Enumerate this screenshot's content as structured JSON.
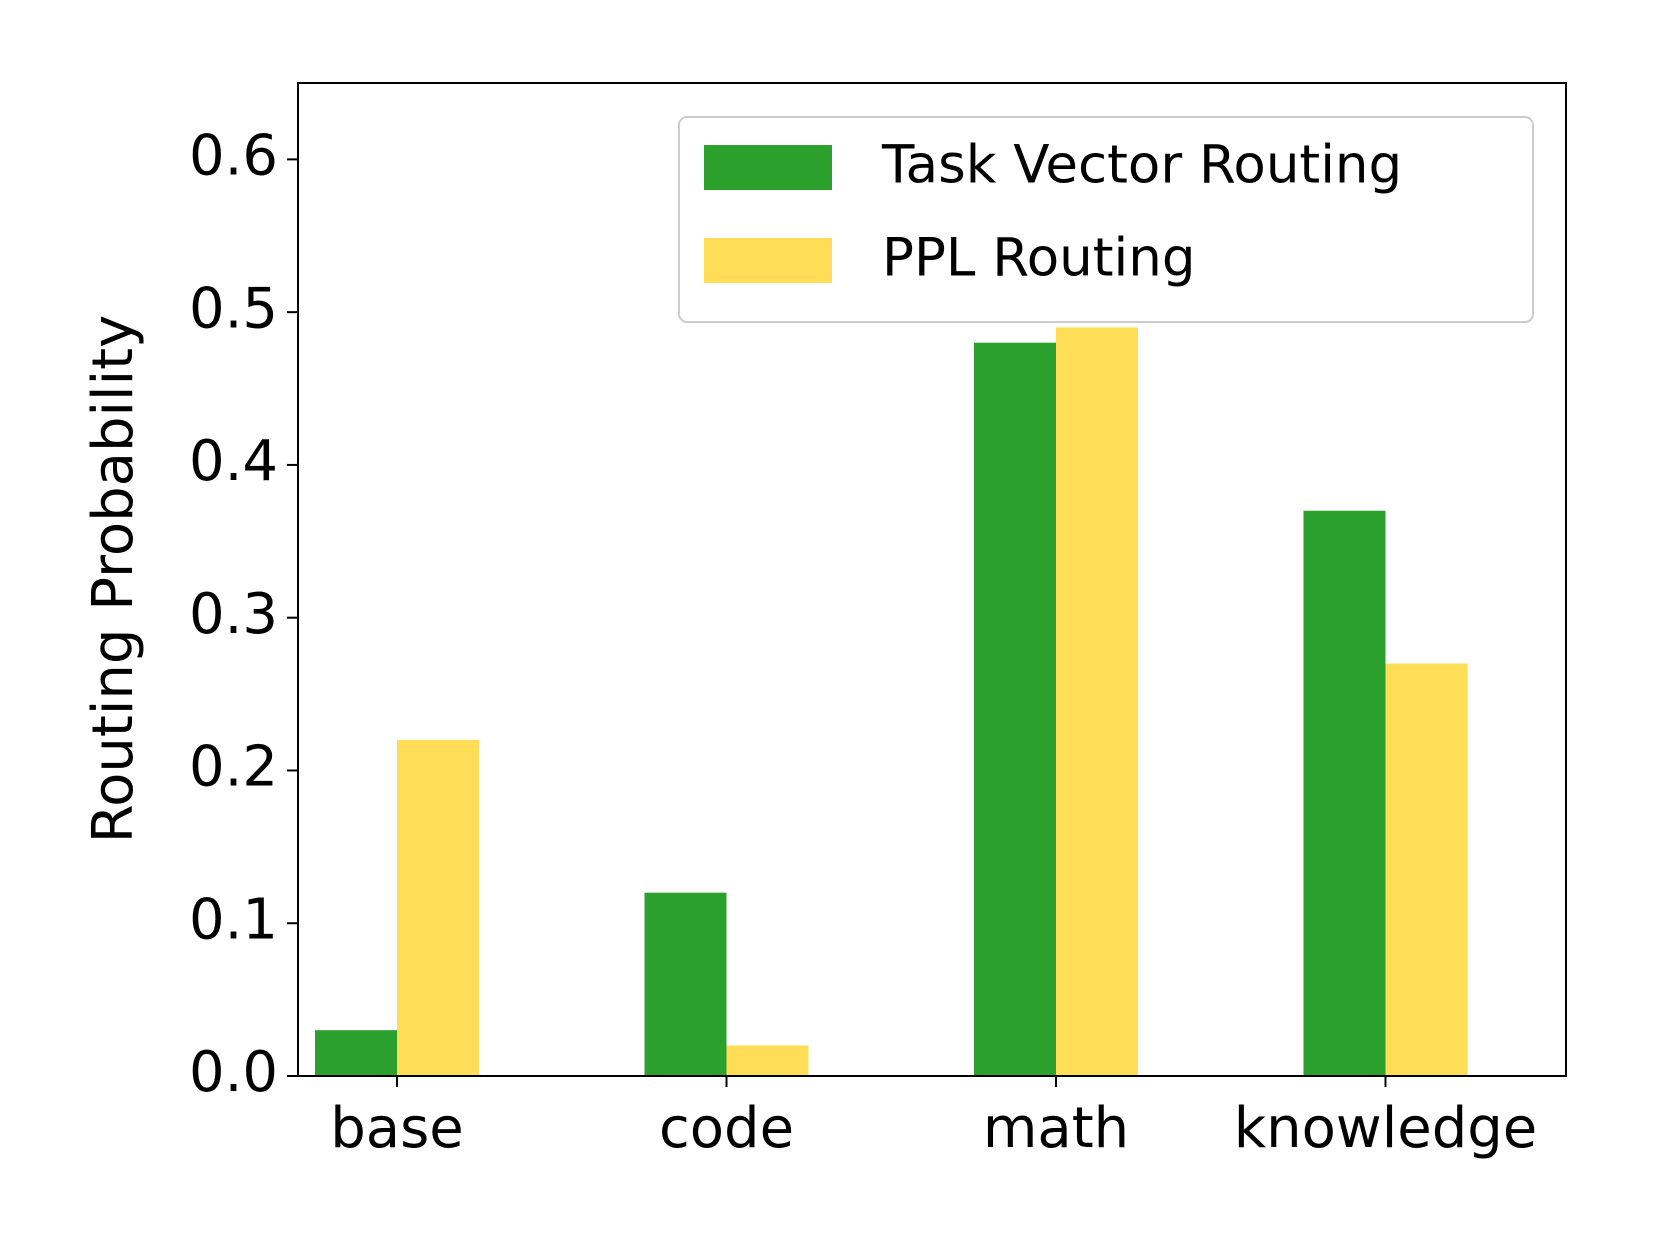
{
  "chart_data": {
    "type": "bar",
    "ylabel": "Routing Probability",
    "categories": [
      "base",
      "code",
      "math",
      "knowledge"
    ],
    "series": [
      {
        "name": "Task Vector Routing",
        "color": "#2ca02c",
        "values": [
          0.03,
          0.12,
          0.48,
          0.37
        ]
      },
      {
        "name": "PPL Routing",
        "color": "#ffdd57",
        "values": [
          0.22,
          0.02,
          0.49,
          0.27
        ]
      }
    ],
    "ylim": [
      0,
      0.65
    ],
    "yticks": [
      {
        "value": 0,
        "label": "0.0"
      },
      0.1,
      0.2,
      0.3,
      0.4,
      0.5,
      0.6
    ],
    "legend": "upper right",
    "grid": false
  }
}
